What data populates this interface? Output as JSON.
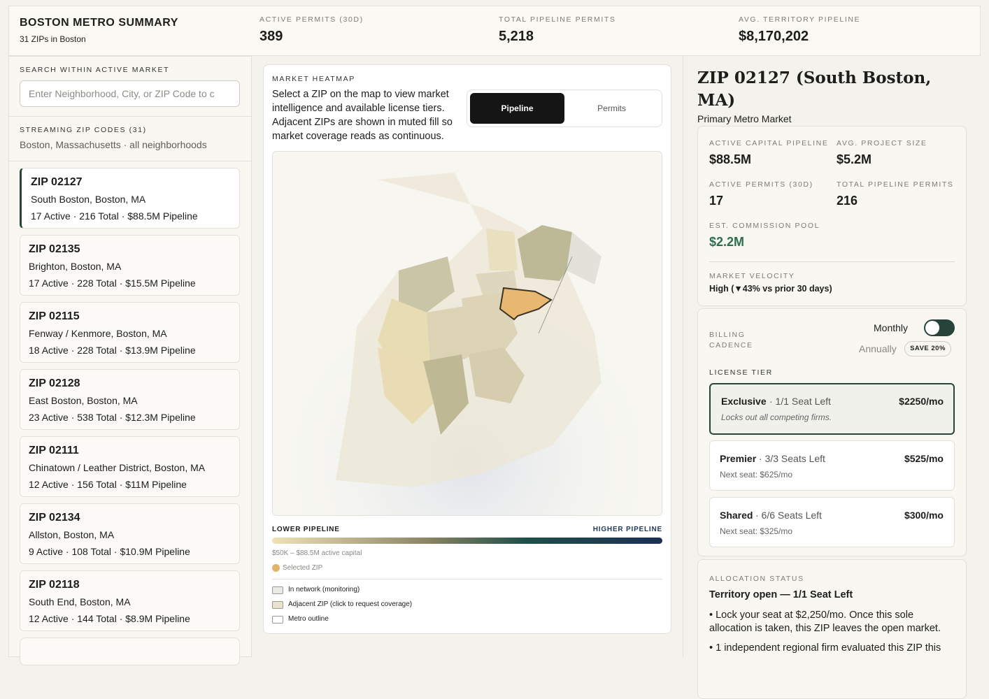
{
  "header": {
    "title": "BOSTON METRO SUMMARY",
    "subtitle": "31 ZIPs in Boston",
    "stats": [
      {
        "label": "ACTIVE PERMITS (30D)",
        "value": "389"
      },
      {
        "label": "TOTAL PIPELINE PERMITS",
        "value": "5,218"
      },
      {
        "label": "AVG. TERRITORY PIPELINE",
        "value": "$8,170,202"
      }
    ]
  },
  "sidebar": {
    "search_label": "SEARCH WITHIN ACTIVE MARKET",
    "search_placeholder": "Enter Neighborhood, City, or ZIP Code to c",
    "streaming_label": "STREAMING ZIP CODES (31)",
    "streaming_sub": "Boston, Massachusetts · all neighborhoods",
    "zips": [
      {
        "zip": "ZIP 02127",
        "name": "South Boston, Boston, MA",
        "stats": "17 Active · 216 Total · $88.5M Pipeline"
      },
      {
        "zip": "ZIP 02135",
        "name": "Brighton, Boston, MA",
        "stats": "17 Active · 228 Total · $15.5M Pipeline"
      },
      {
        "zip": "ZIP 02115",
        "name": "Fenway / Kenmore, Boston, MA",
        "stats": "18 Active · 228 Total · $13.9M Pipeline"
      },
      {
        "zip": "ZIP 02128",
        "name": "East Boston, Boston, MA",
        "stats": "23 Active · 538 Total · $12.3M Pipeline"
      },
      {
        "zip": "ZIP 02111",
        "name": "Chinatown / Leather District, Boston, MA",
        "stats": "12 Active · 156 Total · $11M Pipeline"
      },
      {
        "zip": "ZIP 02134",
        "name": "Allston, Boston, MA",
        "stats": "9 Active · 108 Total · $10.9M Pipeline"
      },
      {
        "zip": "ZIP 02118",
        "name": "South End, Boston, MA",
        "stats": "12 Active · 144 Total · $8.9M Pipeline"
      }
    ]
  },
  "map_panel": {
    "label": "MARKET HEATMAP",
    "description": "Select a ZIP on the map to view market intelligence and available license tiers. Adjacent ZIPs are shown in muted fill so market coverage reads as continuous.",
    "toggle": [
      "Pipeline",
      "Permits"
    ],
    "legend_low": "LOWER PIPELINE",
    "legend_high": "HIGHER PIPELINE",
    "range": "$50K – $88.5M active capital",
    "selected": "Selected ZIP",
    "keys": [
      "In network (monitoring)",
      "Adjacent ZIP (click to request coverage)",
      "Metro outline"
    ]
  },
  "detail": {
    "title": "ZIP 02127 (South Boston, MA)",
    "subtitle": "Primary Metro Market",
    "metrics": [
      {
        "label": "ACTIVE CAPITAL PIPELINE",
        "value": "$88.5M"
      },
      {
        "label": "AVG. PROJECT SIZE",
        "value": "$5.2M"
      },
      {
        "label": "ACTIVE PERMITS (30D)",
        "value": "17"
      },
      {
        "label": "TOTAL PIPELINE PERMITS",
        "value": "216"
      },
      {
        "label": "EST. COMMISSION POOL",
        "value": "$2.2M"
      }
    ],
    "velocity_label": "MARKET VELOCITY",
    "velocity": "High (▼43% vs prior 30 days)",
    "billing_label": "BILLING CADENCE",
    "monthly": "Monthly",
    "annually": "Annually",
    "save": "SAVE 20%",
    "tier_label": "LICENSE TIER",
    "tiers": [
      {
        "name": "Exclusive",
        "seats": "· 1/1 Seat Left",
        "price": "$2250/mo",
        "note": "Locks out all competing firms."
      },
      {
        "name": "Premier",
        "seats": "· 3/3 Seats Left",
        "price": "$525/mo",
        "note": "Next seat: $625/mo"
      },
      {
        "name": "Shared",
        "seats": "· 6/6 Seats Left",
        "price": "$300/mo",
        "note": "Next seat: $325/mo"
      }
    ],
    "allocation_label": "ALLOCATION STATUS",
    "allocation_heading": "Territory open — 1/1 Seat Left",
    "allocation_bullets": [
      "• Lock your seat at $2,250/mo. Once this sole allocation is taken, this ZIP leaves the open market.",
      "• 1 independent regional firm evaluated this ZIP this"
    ]
  }
}
